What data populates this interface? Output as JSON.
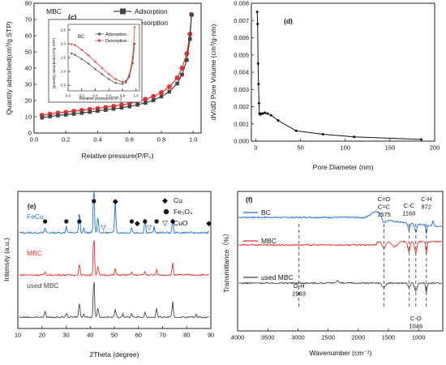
{
  "colors": {
    "adsorption": "#444444",
    "desorption": "#e83030",
    "fecu": "#1c6fd6",
    "mbc": "#e83030",
    "used": "#444444",
    "ftir_bc": "#1c6fd6",
    "ftir_mbc": "#e83030",
    "ftir_used": "#444444",
    "inset_ads": "#555555"
  },
  "chart_data": [
    {
      "panel": "(c)",
      "type": "line",
      "annotation": "MBC",
      "xlabel": "Relative pressure(P/P₀)",
      "ylabel": "Quantity adsorbed(cm³/g STP)",
      "xlim": [
        0.0,
        1.05
      ],
      "ylim": [
        0,
        80
      ],
      "xticks": [
        "0.0",
        "0.2",
        "0.4",
        "0.6",
        "0.8",
        "1.0"
      ],
      "yticks": [
        "0",
        "10",
        "20",
        "30",
        "40",
        "50",
        "60",
        "70",
        "80"
      ],
      "legend": [
        "Adsorption",
        "Desorption"
      ],
      "series": [
        {
          "name": "Adsorption",
          "x": [
            0.05,
            0.1,
            0.15,
            0.2,
            0.25,
            0.3,
            0.35,
            0.4,
            0.45,
            0.5,
            0.55,
            0.6,
            0.65,
            0.7,
            0.75,
            0.8,
            0.85,
            0.9,
            0.93,
            0.96,
            0.98,
            0.99
          ],
          "y": [
            9.5,
            10.2,
            10.8,
            11.3,
            11.8,
            12.4,
            13.0,
            13.6,
            14.2,
            14.9,
            15.6,
            16.4,
            17.4,
            18.6,
            20.2,
            22.5,
            25.5,
            30.5,
            36,
            45,
            58,
            73
          ]
        },
        {
          "name": "Desorption",
          "x": [
            0.05,
            0.1,
            0.15,
            0.2,
            0.25,
            0.3,
            0.35,
            0.4,
            0.45,
            0.5,
            0.55,
            0.6,
            0.65,
            0.7,
            0.75,
            0.8,
            0.85,
            0.9,
            0.93,
            0.96,
            0.98,
            0.99
          ],
          "y": [
            11.0,
            11.6,
            12.3,
            12.9,
            13.5,
            14.0,
            14.6,
            15.2,
            15.8,
            16.5,
            17.3,
            18.2,
            19.4,
            20.8,
            22.6,
            25,
            28.5,
            34,
            40,
            49,
            61,
            73
          ]
        }
      ],
      "inset": {
        "annotation": "BC",
        "xlabel": "Relative pressure(P/P₀)",
        "ylabel": "Quantity adsorbed(cm³/g STP)",
        "xticks": [
          "0.0",
          "0.2",
          "0.4",
          "0.6",
          "0.8",
          "1.0"
        ],
        "yticks": [
          "0.5",
          "1.0",
          "1.5",
          "2.0",
          "2.5"
        ],
        "xlim": [
          0,
          1.05
        ],
        "ylim": [
          0.3,
          2.7
        ],
        "legend": [
          "Adsorption",
          "Desorption"
        ],
        "series": [
          {
            "name": "Adsorption",
            "x": [
              0.05,
              0.1,
              0.2,
              0.3,
              0.4,
              0.5,
              0.6,
              0.7,
              0.8,
              0.85,
              0.9,
              0.95,
              0.98
            ],
            "y": [
              1.65,
              1.6,
              1.45,
              1.28,
              1.08,
              0.9,
              0.72,
              0.58,
              0.55,
              0.6,
              0.8,
              1.3,
              2.0
            ]
          },
          {
            "name": "Desorption",
            "x": [
              0.05,
              0.1,
              0.2,
              0.3,
              0.4,
              0.5,
              0.6,
              0.7,
              0.8,
              0.85,
              0.9,
              0.95,
              0.98
            ],
            "y": [
              1.98,
              1.95,
              1.78,
              1.58,
              1.35,
              1.12,
              0.9,
              0.72,
              0.62,
              0.66,
              0.88,
              1.5,
              2.6
            ]
          }
        ]
      }
    },
    {
      "panel": "(d)",
      "type": "line",
      "xlabel": "Pore Diameter (nm)",
      "ylabel": "dV/dD Pore Volume (cm³/g·nm)",
      "xlim": [
        -5,
        200
      ],
      "ylim": [
        0,
        0.008
      ],
      "xticks": [
        "0",
        "50",
        "100",
        "150",
        "200"
      ],
      "yticks": [
        "0.000",
        "0.001",
        "0.002",
        "0.003",
        "0.004",
        "0.005",
        "0.006",
        "0.007",
        "0.008"
      ],
      "series": [
        {
          "x": [
            1.5,
            2,
            2.5,
            3,
            3.5,
            4,
            5,
            6,
            8,
            10,
            13,
            17,
            25,
            45,
            75,
            110,
            185
          ],
          "y": [
            0.0075,
            0.0068,
            0.0045,
            0.0033,
            0.0022,
            0.0016,
            0.00155,
            0.0016,
            0.0016,
            0.00165,
            0.0016,
            0.0015,
            0.0012,
            0.0006,
            0.0004,
            0.00025,
            0.0001
          ]
        }
      ]
    },
    {
      "panel": "(e)",
      "type": "line",
      "xlabel": "2Theta (degree)",
      "ylabel": "Intensity (a.u.)",
      "xlim": [
        10,
        90
      ],
      "xticks": [
        "10",
        "20",
        "30",
        "40",
        "50",
        "60",
        "70",
        "80",
        "90"
      ],
      "legend": [
        "Cu",
        "Fe₃O₄",
        "CuO"
      ],
      "series": [
        {
          "name": "FeCu",
          "peaks": [
            [
              21.3,
              0.1
            ],
            [
              30.1,
              0.15
            ],
            [
              35.5,
              0.45
            ],
            [
              37.3,
              0.1
            ],
            [
              41.5,
              1.0
            ],
            [
              43.2,
              0.35
            ],
            [
              50.4,
              0.7
            ],
            [
              57.2,
              0.12
            ],
            [
              62.7,
              0.3
            ],
            [
              66.5,
              0.12
            ],
            [
              74.2,
              0.3
            ],
            [
              89.8,
              0.25
            ]
          ]
        },
        {
          "name": "MBC",
          "peaks": [
            [
              21.3,
              0.06
            ],
            [
              35.5,
              0.28
            ],
            [
              41.5,
              0.95
            ],
            [
              43.2,
              0.2
            ],
            [
              50.4,
              0.15
            ],
            [
              57.2,
              0.06
            ],
            [
              62.7,
              0.08
            ],
            [
              67.5,
              0.12
            ],
            [
              74.2,
              0.28
            ]
          ]
        },
        {
          "name": "used MBC",
          "peaks": [
            [
              21.3,
              0.15
            ],
            [
              30.1,
              0.1
            ],
            [
              35.5,
              0.35
            ],
            [
              37.3,
              0.1
            ],
            [
              41.5,
              0.95
            ],
            [
              43.2,
              0.25
            ],
            [
              50.4,
              0.2
            ],
            [
              53.5,
              0.08
            ],
            [
              57.2,
              0.1
            ],
            [
              62.7,
              0.12
            ],
            [
              67.5,
              0.2
            ],
            [
              74.2,
              0.35
            ],
            [
              84,
              0.06
            ]
          ]
        }
      ],
      "markers": [
        {
          "type": "Fe₃O₄",
          "x": [
            21.3,
            30.1,
            35.5,
            41.5,
            57.2,
            62.7,
            67.5,
            74.2
          ]
        },
        {
          "type": "Cu",
          "x": [
            50.4,
            59.5,
            89.2
          ]
        },
        {
          "type": "CuO",
          "x": [
            45.5,
            64.5
          ]
        }
      ]
    },
    {
      "panel": "(f)",
      "type": "line",
      "xlabel": "Wavenumber (cm⁻¹)",
      "ylabel": "Transmittance（%）",
      "xlim": [
        4000,
        600
      ],
      "xticks": [
        "4000",
        "3500",
        "3000",
        "2500",
        "2000",
        "1500",
        "1000"
      ],
      "series": [
        {
          "name": "BC"
        },
        {
          "name": "MBC"
        },
        {
          "name": "used MBC"
        }
      ],
      "annotations": [
        {
          "text": [
            "O-H",
            "2983"
          ],
          "x": 2983
        },
        {
          "text": [
            "C=O",
            "C=C",
            "1575"
          ],
          "x": 1575
        },
        {
          "text": [
            "C-C",
            "1160"
          ],
          "x": 1160
        },
        {
          "text": [
            "C-O",
            "1046"
          ],
          "x": 1046
        },
        {
          "text": [
            "C-H",
            "872"
          ],
          "x": 872
        }
      ]
    }
  ],
  "labels": {
    "c_panel": "(c)",
    "c_ann": "MBC",
    "c_leg1": "Adsorption",
    "c_leg2": "Desorption",
    "c_xlabel": "Relative pressure(P/P₀)",
    "c_ylabel": "Quantity adsorbed(cm³/g STP)",
    "inset_ann": "BC",
    "inset_leg1": "Adsorption",
    "inset_leg2": "Desorption",
    "inset_xlabel": "Relative pressure(P/P₀)",
    "inset_ylabel": "Quantity adsorbed(cm³/g STP)",
    "d_panel": "(d)",
    "d_xlabel": "Pore Diameter (nm)",
    "d_ylabel": "dV/dD Pore Volume (cm³/g·nm)",
    "e_panel": "(e)",
    "e_xlabel": "2Theta (degree)",
    "e_ylabel": "Intensity (a.u.)",
    "e_fecu": "FeCu",
    "e_mbc": "MBC",
    "e_used": "used MBC",
    "e_leg_cu": "Cu",
    "e_leg_fe": "Fe₃O₄",
    "e_leg_cuo": "CuO",
    "f_panel": "(f)",
    "f_xlabel": "Wavenumber (cm⁻¹)",
    "f_ylabel": "Transmittance（%）",
    "f_bc": "BC",
    "f_mbc": "MBC",
    "f_used": "used MBC"
  }
}
